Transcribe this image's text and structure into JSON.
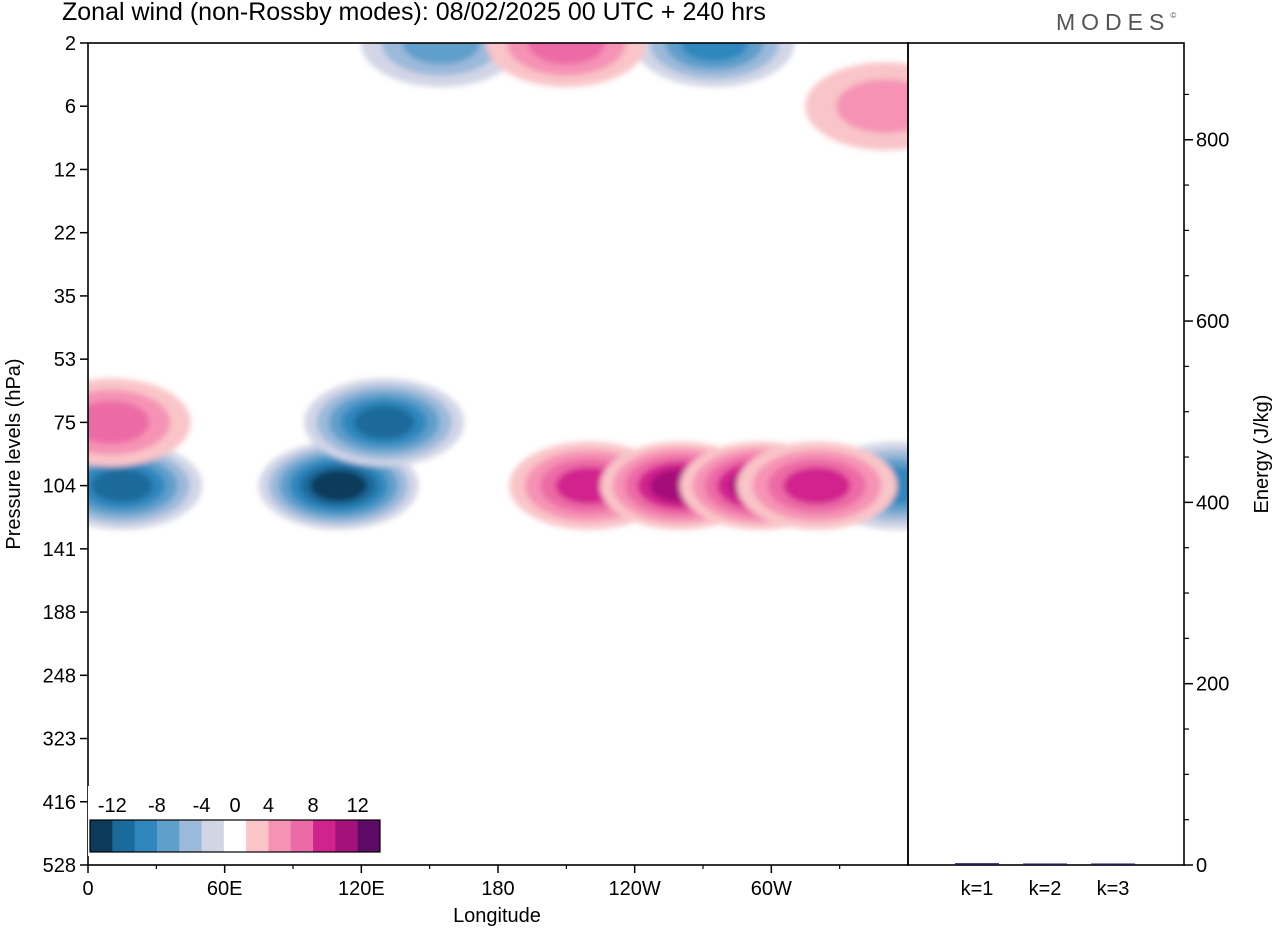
{
  "header": {
    "title": "Zonal wind (non-Rossby modes):  08/02/2025  00 UTC  + 240 hrs",
    "brand": "MODES",
    "brand_mark": "©"
  },
  "chart_data": [
    {
      "type": "heatmap",
      "title": "Zonal wind (non-Rossby modes):  08/02/2025  00 UTC  + 240 hrs",
      "xlabel": "Longitude",
      "ylabel": "Pressure levels (hPa)",
      "x_ticks": [
        "0",
        "60E",
        "120E",
        "180",
        "120W",
        "60W"
      ],
      "x_tick_degrees": [
        0,
        60,
        120,
        180,
        240,
        300
      ],
      "xlim": [
        0,
        360
      ],
      "y_ticks": [
        "2",
        "6",
        "12",
        "22",
        "35",
        "53",
        "75",
        "104",
        "141",
        "188",
        "248",
        "323",
        "416",
        "528"
      ],
      "colorbar": {
        "labels": [
          "-12",
          "-8",
          "-4",
          "0",
          "4",
          "8",
          "12"
        ],
        "levels": [
          -14,
          -12,
          -10,
          -8,
          -6,
          -4,
          -2,
          2,
          4,
          6,
          8,
          10,
          12,
          14
        ],
        "colors": [
          "#0b3a5b",
          "#1a6a9b",
          "#2f87bd",
          "#5f9fca",
          "#9bb9da",
          "#d2d5e6",
          "#ffffff",
          "#f9c5c8",
          "#f693b5",
          "#ec6aa5",
          "#d1238e",
          "#a5117a",
          "#5c0a66"
        ]
      },
      "features": [
        {
          "lon": 15,
          "level": 104,
          "value": -10
        },
        {
          "lon": 110,
          "level": 104,
          "value": -13
        },
        {
          "lon": 130,
          "level": 75,
          "value": -10
        },
        {
          "lon": 155,
          "level": 2,
          "value": -6
        },
        {
          "lon": 275,
          "level": 2,
          "value": -8
        },
        {
          "lon": 355,
          "level": 104,
          "value": -9
        },
        {
          "lon": 10,
          "level": 75,
          "value": 6
        },
        {
          "lon": 220,
          "level": 104,
          "value": 8
        },
        {
          "lon": 260,
          "level": 104,
          "value": 10
        },
        {
          "lon": 295,
          "level": 104,
          "value": 10
        },
        {
          "lon": 320,
          "level": 104,
          "value": 8
        },
        {
          "lon": 210,
          "level": 2,
          "value": 6
        },
        {
          "lon": 350,
          "level": 6,
          "value": 5
        }
      ]
    },
    {
      "type": "bar",
      "categories": [
        "k=1",
        "k=2",
        "k=3"
      ],
      "values": [
        2,
        1.5,
        1.5
      ],
      "ylabel": "Energy (J/kg)",
      "ylim": [
        0,
        900
      ],
      "y_ticks": [
        0,
        200,
        400,
        600,
        800
      ]
    }
  ]
}
